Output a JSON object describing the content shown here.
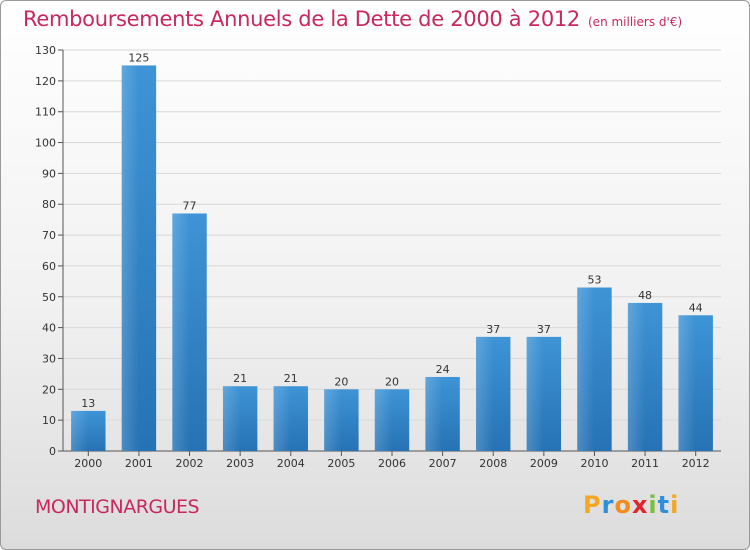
{
  "chart_data": {
    "type": "bar",
    "title": "Remboursements Annuels de la Dette de 2000 à 2012",
    "subtitle": "(en milliers d'€)",
    "categories": [
      "2000",
      "2001",
      "2002",
      "2003",
      "2004",
      "2005",
      "2006",
      "2007",
      "2008",
      "2009",
      "2010",
      "2011",
      "2012"
    ],
    "values": [
      13,
      125,
      77,
      21,
      21,
      20,
      20,
      24,
      37,
      37,
      53,
      48,
      44
    ],
    "ylim": [
      0,
      130
    ],
    "yticks": [
      0,
      10,
      20,
      30,
      40,
      50,
      60,
      70,
      80,
      90,
      100,
      110,
      120,
      130
    ],
    "xlabel": "",
    "ylabel": "",
    "grid": true,
    "bar_color": "#3e94d6",
    "bar_color_dark": "#2672b4",
    "grid_color": "#d8d8d8"
  },
  "footer": {
    "commune": "MONTIGNARGUES",
    "logo_letters": [
      "P",
      "r",
      "o",
      "x",
      "i",
      "t",
      "i"
    ],
    "logo_colors": [
      "#f5a623",
      "#2f8fd8",
      "#f28c1c",
      "#e0262b",
      "#7bbf3a",
      "#2f8fd8",
      "#f5a623"
    ]
  },
  "colors": {
    "title": "#c8285f"
  }
}
